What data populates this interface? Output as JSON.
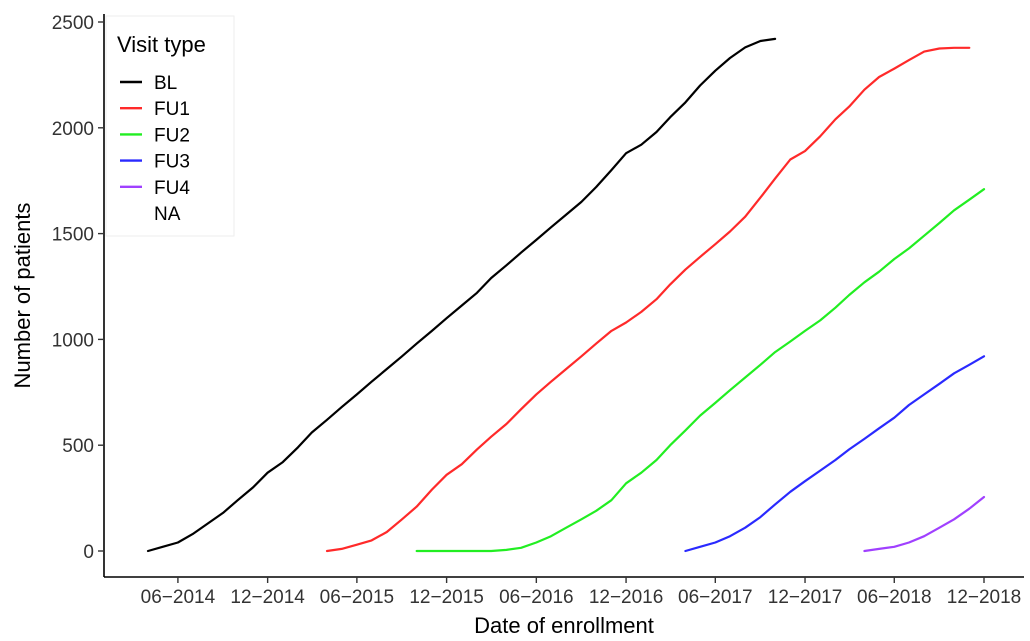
{
  "chart_data": {
    "type": "line",
    "title": "",
    "xlabel": "Date of enrollment",
    "ylabel": "Number of patients",
    "ylim": [
      0,
      2500
    ],
    "xlim": [
      "2014-03-01",
      "2018-12-31"
    ],
    "grid": false,
    "legend_position": "top-left",
    "legend_title": "Visit type",
    "x_ticks": [
      "2014-06-01",
      "2014-12-01",
      "2015-06-01",
      "2015-12-01",
      "2016-06-01",
      "2016-12-01",
      "2017-06-01",
      "2017-12-01",
      "2018-06-01",
      "2018-12-01"
    ],
    "x_tick_labels": [
      "06−2014",
      "12−2014",
      "06−2015",
      "12−2015",
      "06−2016",
      "12−2016",
      "06−2017",
      "12−2017",
      "06−2018",
      "12−2018"
    ],
    "y_ticks": [
      0,
      500,
      1000,
      1500,
      2000,
      2500
    ],
    "y_tick_labels": [
      "0",
      "500",
      "1000",
      "1500",
      "2000",
      "2500"
    ],
    "series": [
      {
        "name": "BL",
        "color": "#000000",
        "x": [
          "2014-04-01",
          "2014-05-01",
          "2014-06-01",
          "2014-07-01",
          "2014-08-01",
          "2014-09-01",
          "2014-10-01",
          "2014-11-01",
          "2014-12-01",
          "2015-01-01",
          "2015-02-01",
          "2015-03-01",
          "2015-04-01",
          "2015-05-01",
          "2015-06-01",
          "2015-07-01",
          "2015-08-01",
          "2015-09-01",
          "2015-10-01",
          "2015-11-01",
          "2015-12-01",
          "2016-01-01",
          "2016-02-01",
          "2016-03-01",
          "2016-04-01",
          "2016-05-01",
          "2016-06-01",
          "2016-07-01",
          "2016-08-01",
          "2016-09-01",
          "2016-10-01",
          "2016-11-01",
          "2016-12-01",
          "2017-01-01",
          "2017-02-01",
          "2017-03-01",
          "2017-04-01",
          "2017-05-01",
          "2017-06-01",
          "2017-07-01",
          "2017-08-01",
          "2017-09-01",
          "2017-10-01"
        ],
        "y": [
          0,
          20,
          40,
          80,
          130,
          180,
          240,
          300,
          370,
          420,
          490,
          560,
          620,
          680,
          740,
          800,
          860,
          920,
          980,
          1040,
          1100,
          1160,
          1220,
          1290,
          1350,
          1410,
          1470,
          1530,
          1590,
          1650,
          1720,
          1800,
          1880,
          1920,
          1980,
          2050,
          2120,
          2200,
          2270,
          2330,
          2380,
          2410,
          2420
        ]
      },
      {
        "name": "FU1",
        "color": "#ff2a2a",
        "x": [
          "2015-04-01",
          "2015-05-01",
          "2015-06-01",
          "2015-07-01",
          "2015-08-01",
          "2015-09-01",
          "2015-10-01",
          "2015-11-01",
          "2015-12-01",
          "2016-01-01",
          "2016-02-01",
          "2016-03-01",
          "2016-04-01",
          "2016-05-01",
          "2016-06-01",
          "2016-07-01",
          "2016-08-01",
          "2016-09-01",
          "2016-10-01",
          "2016-11-01",
          "2016-12-01",
          "2017-01-01",
          "2017-02-01",
          "2017-03-01",
          "2017-04-01",
          "2017-05-01",
          "2017-06-01",
          "2017-07-01",
          "2017-08-01",
          "2017-09-01",
          "2017-10-01",
          "2017-11-01",
          "2017-12-01",
          "2018-01-01",
          "2018-02-01",
          "2018-03-01",
          "2018-04-01",
          "2018-05-01",
          "2018-06-01",
          "2018-07-01",
          "2018-08-01",
          "2018-09-01",
          "2018-10-01",
          "2018-11-01"
        ],
        "y": [
          0,
          10,
          30,
          50,
          90,
          150,
          210,
          290,
          360,
          410,
          480,
          540,
          600,
          670,
          740,
          800,
          860,
          920,
          980,
          1040,
          1080,
          1130,
          1190,
          1260,
          1330,
          1390,
          1450,
          1510,
          1580,
          1670,
          1760,
          1850,
          1890,
          1960,
          2040,
          2100,
          2180,
          2240,
          2280,
          2320,
          2360,
          2375,
          2378,
          2378
        ]
      },
      {
        "name": "FU2",
        "color": "#22ee22",
        "x": [
          "2015-10-01",
          "2015-11-01",
          "2015-12-01",
          "2016-01-01",
          "2016-02-01",
          "2016-03-01",
          "2016-04-01",
          "2016-05-01",
          "2016-06-01",
          "2016-07-01",
          "2016-08-01",
          "2016-09-01",
          "2016-10-01",
          "2016-11-01",
          "2016-12-01",
          "2017-01-01",
          "2017-02-01",
          "2017-03-01",
          "2017-04-01",
          "2017-05-01",
          "2017-06-01",
          "2017-07-01",
          "2017-08-01",
          "2017-09-01",
          "2017-10-01",
          "2017-11-01",
          "2017-12-01",
          "2018-01-01",
          "2018-02-01",
          "2018-03-01",
          "2018-04-01",
          "2018-05-01",
          "2018-06-01",
          "2018-07-01",
          "2018-08-01",
          "2018-09-01",
          "2018-10-01",
          "2018-11-01",
          "2018-12-01"
        ],
        "y": [
          0,
          0,
          0,
          0,
          0,
          0,
          5,
          15,
          40,
          70,
          110,
          150,
          190,
          240,
          320,
          370,
          430,
          500,
          570,
          640,
          700,
          760,
          820,
          880,
          940,
          990,
          1040,
          1090,
          1150,
          1210,
          1270,
          1320,
          1380,
          1430,
          1490,
          1550,
          1610,
          1660,
          1710
        ]
      },
      {
        "name": "FU3",
        "color": "#2a2aff",
        "x": [
          "2017-04-01",
          "2017-05-01",
          "2017-06-01",
          "2017-07-01",
          "2017-08-01",
          "2017-09-01",
          "2017-10-01",
          "2017-11-01",
          "2017-12-01",
          "2018-01-01",
          "2018-02-01",
          "2018-03-01",
          "2018-04-01",
          "2018-05-01",
          "2018-06-01",
          "2018-07-01",
          "2018-08-01",
          "2018-09-01",
          "2018-10-01",
          "2018-11-01",
          "2018-12-01"
        ],
        "y": [
          0,
          20,
          40,
          70,
          110,
          160,
          220,
          280,
          330,
          380,
          430,
          480,
          530,
          580,
          630,
          690,
          740,
          790,
          840,
          880,
          920
        ]
      },
      {
        "name": "FU4",
        "color": "#a040ff",
        "x": [
          "2018-04-01",
          "2018-05-01",
          "2018-06-01",
          "2018-07-01",
          "2018-08-01",
          "2018-09-01",
          "2018-10-01",
          "2018-11-01",
          "2018-12-01"
        ],
        "y": [
          0,
          10,
          20,
          40,
          70,
          110,
          150,
          200,
          255
        ]
      },
      {
        "name": "NA",
        "color": "",
        "x": [],
        "y": []
      }
    ]
  }
}
